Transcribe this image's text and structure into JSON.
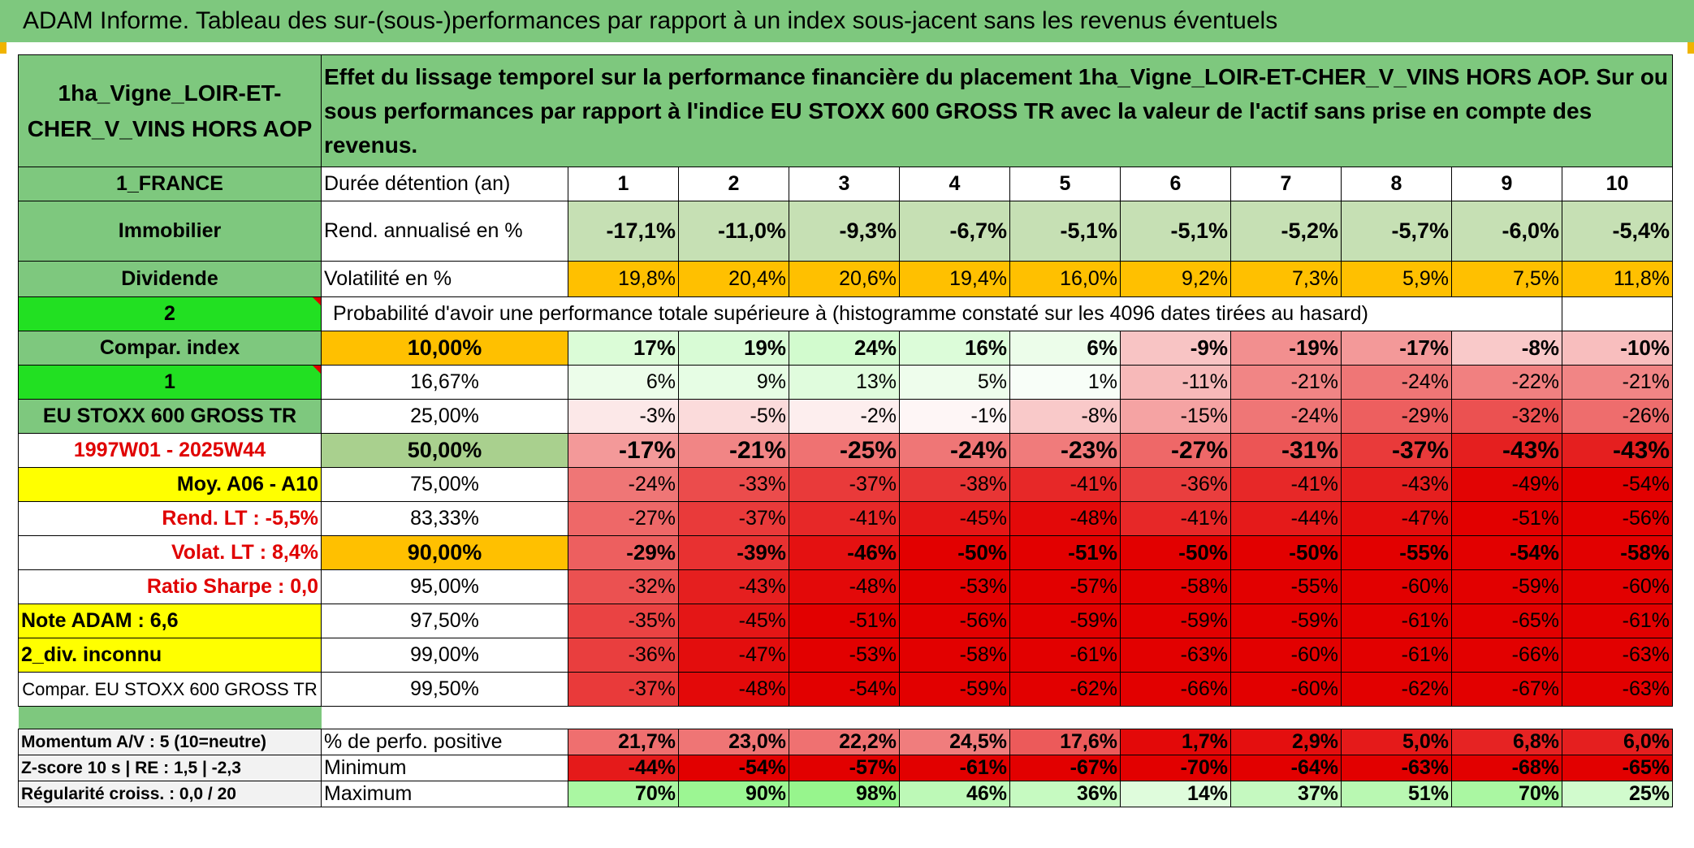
{
  "title": "ADAM Informe. Tableau des sur-(sous-)performances par rapport à un index sous-jacent sans les revenus éventuels",
  "header": {
    "asset_name": "1ha_Vigne_LOIR-ET-CHER_V_VINS HORS AOP",
    "description": "Effet du lissage temporel sur la performance financière du placement 1ha_Vigne_LOIR-ET-CHER_V_VINS HORS AOP. Sur ou sous performances par rapport à l'indice EU STOXX 600 GROSS TR avec la valeur de l'actif sans prise en compte des revenus."
  },
  "durations": {
    "label": "Durée détention (an)",
    "values": [
      "1",
      "2",
      "3",
      "4",
      "5",
      "6",
      "7",
      "8",
      "9",
      "10"
    ]
  },
  "left_labels": {
    "country": "1_FRANCE",
    "category": "Immobilier",
    "dividend": "Dividende",
    "code2": "2",
    "compar_index": "Compar. index",
    "code1": "1",
    "index_name": "EU STOXX 600 GROSS TR",
    "period": "1997W01 - 2025W44",
    "moy": "Moy. A06 - A10",
    "rend_lt": "Rend. LT :   -5,5%",
    "volat_lt": "Volat. LT :   8,4%",
    "sharpe": "Ratio Sharpe :    0,0",
    "note": "Note ADAM : 6,6",
    "div": "2_div. inconnu",
    "compar": "Compar. EU STOXX 600 GROSS TR"
  },
  "rend": {
    "label": "Rend. annualisé en %",
    "values": [
      "-17,1%",
      "-11,0%",
      "-9,3%",
      "-6,7%",
      "-5,1%",
      "-5,1%",
      "-5,2%",
      "-5,7%",
      "-6,0%",
      "-5,4%"
    ]
  },
  "vol": {
    "label": "Volatilité en %",
    "values": [
      "19,8%",
      "20,4%",
      "20,6%",
      "19,4%",
      "16,0%",
      "9,2%",
      "7,3%",
      "5,9%",
      "7,5%",
      "11,8%"
    ]
  },
  "prob_label": "Probabilité d'avoir une performance totale supérieure à (histogramme constaté sur les 4096 dates tirées au hasard)",
  "quantiles": [
    {
      "p": "10,00%",
      "values": [
        "17%",
        "19%",
        "24%",
        "16%",
        "6%",
        "-9%",
        "-19%",
        "-17%",
        "-8%",
        "-10%"
      ]
    },
    {
      "p": "16,67%",
      "values": [
        "6%",
        "9%",
        "13%",
        "5%",
        "1%",
        "-11%",
        "-21%",
        "-24%",
        "-22%",
        "-21%"
      ]
    },
    {
      "p": "25,00%",
      "values": [
        "-3%",
        "-5%",
        "-2%",
        "-1%",
        "-8%",
        "-15%",
        "-24%",
        "-29%",
        "-32%",
        "-26%"
      ]
    },
    {
      "p": "50,00%",
      "values": [
        "-17%",
        "-21%",
        "-25%",
        "-24%",
        "-23%",
        "-27%",
        "-31%",
        "-37%",
        "-43%",
        "-43%"
      ]
    },
    {
      "p": "75,00%",
      "values": [
        "-24%",
        "-33%",
        "-37%",
        "-38%",
        "-41%",
        "-36%",
        "-41%",
        "-43%",
        "-49%",
        "-54%"
      ]
    },
    {
      "p": "83,33%",
      "values": [
        "-27%",
        "-37%",
        "-41%",
        "-45%",
        "-48%",
        "-41%",
        "-44%",
        "-47%",
        "-51%",
        "-56%"
      ]
    },
    {
      "p": "90,00%",
      "values": [
        "-29%",
        "-39%",
        "-46%",
        "-50%",
        "-51%",
        "-50%",
        "-50%",
        "-55%",
        "-54%",
        "-58%"
      ]
    },
    {
      "p": "95,00%",
      "values": [
        "-32%",
        "-43%",
        "-48%",
        "-53%",
        "-57%",
        "-58%",
        "-55%",
        "-60%",
        "-59%",
        "-60%"
      ]
    },
    {
      "p": "97,50%",
      "values": [
        "-35%",
        "-45%",
        "-51%",
        "-56%",
        "-59%",
        "-59%",
        "-59%",
        "-61%",
        "-65%",
        "-61%"
      ]
    },
    {
      "p": "99,00%",
      "values": [
        "-36%",
        "-47%",
        "-53%",
        "-58%",
        "-61%",
        "-63%",
        "-60%",
        "-61%",
        "-66%",
        "-63%"
      ]
    },
    {
      "p": "99,50%",
      "values": [
        "-37%",
        "-48%",
        "-54%",
        "-59%",
        "-62%",
        "-66%",
        "-60%",
        "-62%",
        "-67%",
        "-63%"
      ]
    }
  ],
  "bottom": [
    {
      "left": "Momentum A/V : 5 (10=neutre)",
      "label": "% de perfo. positive",
      "values": [
        "21,7%",
        "23,0%",
        "22,2%",
        "24,5%",
        "17,6%",
        "1,7%",
        "2,9%",
        "5,0%",
        "6,8%",
        "6,0%"
      ]
    },
    {
      "left": "Z-score 10 s | RE : 1,5 | -2,3",
      "label": "Minimum",
      "values": [
        "-44%",
        "-54%",
        "-57%",
        "-61%",
        "-67%",
        "-70%",
        "-64%",
        "-63%",
        "-68%",
        "-65%"
      ]
    },
    {
      "left": "Régularité croiss. : 0,0 / 20",
      "label": "Maximum",
      "values": [
        "70%",
        "90%",
        "98%",
        "46%",
        "36%",
        "14%",
        "37%",
        "51%",
        "70%",
        "25%"
      ]
    }
  ]
}
